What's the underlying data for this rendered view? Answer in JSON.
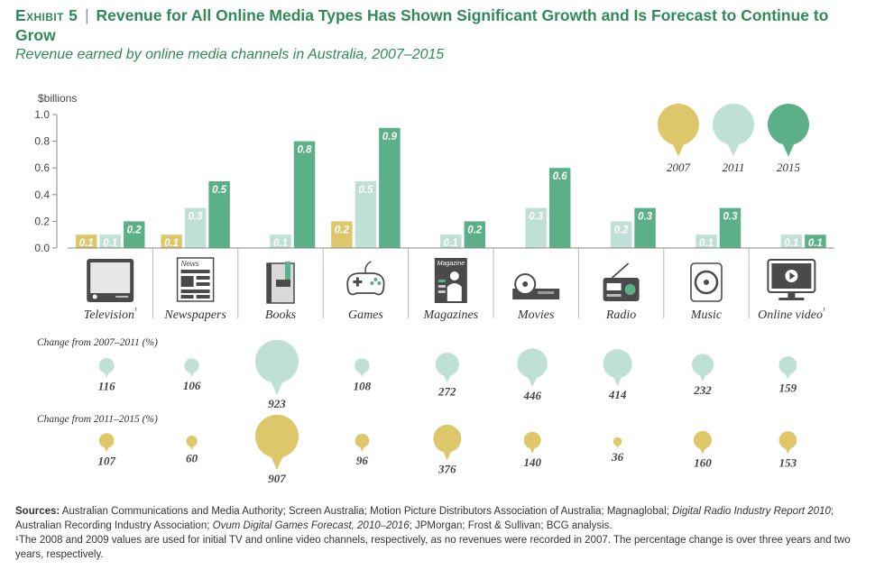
{
  "header": {
    "exhibit": "Exhibit 5",
    "separator": "|",
    "title": "Revenue for All Online Media Types Has Shown Significant Growth and Is Forecast to Continue to Grow",
    "subtitle": "Revenue earned by online media channels in Australia, 2007–2015"
  },
  "colors": {
    "y2007": "#ddc76a",
    "y2011": "#bfe0d6",
    "y2015": "#5cb087",
    "icon_dark": "#4a4a4a",
    "axis": "#8a8a8a"
  },
  "chart_data": [
    {
      "type": "bar",
      "ylabel": "$billions",
      "ylim": [
        0,
        1.0
      ],
      "yticks": [
        "1.0",
        "0.8",
        "0.6",
        "0.4",
        "0.2",
        "0.0"
      ],
      "categories": [
        "Television¹",
        "Newspapers",
        "Books",
        "Games",
        "Magazines",
        "Movies",
        "Radio",
        "Music",
        "Online video¹"
      ],
      "category_icons": [
        "television-icon",
        "newspaper-icon",
        "book-icon",
        "gamepad-icon",
        "magazine-icon",
        "dvd-player-icon",
        "radio-icon",
        "music-disc-icon",
        "online-video-icon"
      ],
      "icon_texts": {
        "newspaper": "News",
        "magazine": "Magazine"
      },
      "legend": {
        "placement": "top-right",
        "entries": [
          "2007",
          "2011",
          "2015"
        ]
      },
      "series": [
        {
          "name": "2007",
          "values": [
            0.1,
            0.1,
            null,
            0.2,
            null,
            null,
            null,
            null,
            null
          ],
          "labels": [
            "0.1",
            "0.1",
            "",
            "0.2",
            "",
            "",
            "",
            "",
            ""
          ]
        },
        {
          "name": "2011",
          "values": [
            0.1,
            0.3,
            0.1,
            0.5,
            0.1,
            0.3,
            0.2,
            0.1,
            0.1
          ],
          "labels": [
            "0.1",
            "0.3",
            "0.1",
            "0.5",
            "0.1",
            "0.3",
            "0.2",
            "0.1",
            "0.1"
          ]
        },
        {
          "name": "2015",
          "values": [
            0.2,
            0.5,
            0.8,
            0.9,
            0.2,
            0.6,
            0.3,
            0.3,
            0.1
          ],
          "labels": [
            "0.2",
            "0.5",
            "0.8",
            "0.9",
            "0.2",
            "0.6",
            "0.3",
            "0.3",
            "0.1"
          ]
        }
      ]
    },
    {
      "type": "bubble",
      "title": "Change from 2007–2011 (%)",
      "categories": [
        "Television¹",
        "Newspapers",
        "Books",
        "Games",
        "Magazines",
        "Movies",
        "Radio",
        "Music",
        "Online video¹"
      ],
      "values": [
        116,
        106,
        923,
        108,
        272,
        446,
        414,
        232,
        159
      ],
      "labels": [
        "116",
        "106",
        "923",
        "108",
        "272",
        "446",
        "414",
        "232",
        "159"
      ]
    },
    {
      "type": "bubble",
      "title": "Change from 2011–2015 (%)",
      "categories": [
        "Television¹",
        "Newspapers",
        "Books",
        "Games",
        "Magazines",
        "Movies",
        "Radio",
        "Music",
        "Online video¹"
      ],
      "values": [
        107,
        60,
        907,
        96,
        376,
        140,
        36,
        160,
        153
      ],
      "labels": [
        "107",
        "60",
        "907",
        "96",
        "376",
        "140",
        "36",
        "160",
        "153"
      ]
    }
  ],
  "sources": {
    "label": "Sources:",
    "text1": "Australian Communications and Media Authority; Screen Australia; Motion Picture Distributors Association of Australia; Magnaglobal;",
    "italic1": "Digital Radio Industry Report 2010",
    "text2": "; Australian Recording Industry Association;",
    "italic2": "Ovum Digital Games Forecast, 2010–2016",
    "text3": "; JPMorgan; Frost & Sullivan; BCG analysis.",
    "footnote": "¹The 2008 and 2009 values are used for initial TV and online video channels, respectively, as no revenues were recorded in 2007. The percentage change is over three years and two years, respectively."
  }
}
